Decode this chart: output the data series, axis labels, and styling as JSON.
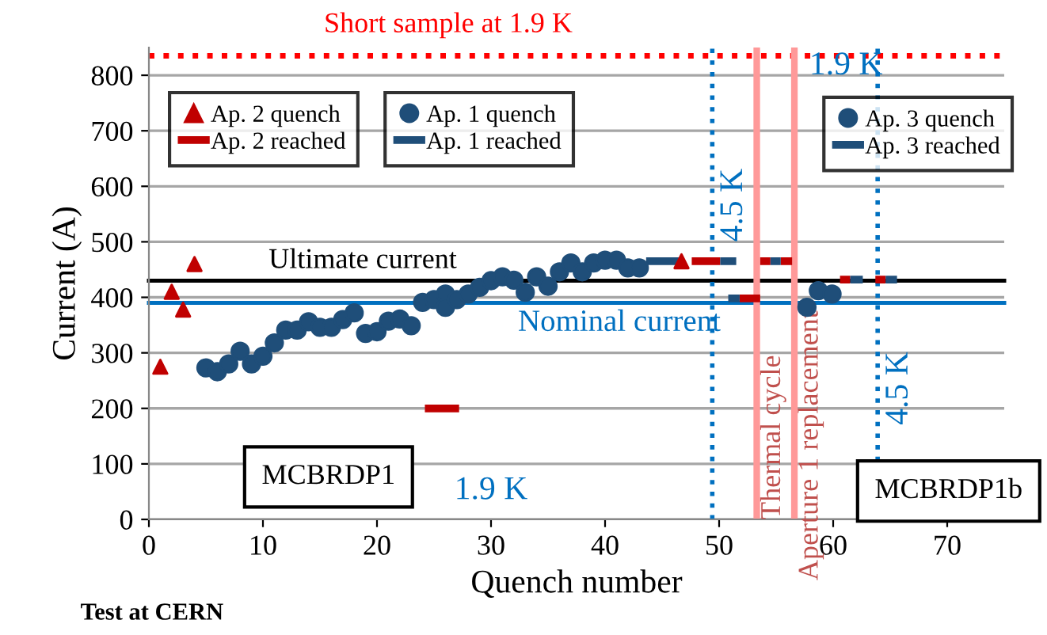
{
  "chart_data": {
    "type": "scatter",
    "xlabel": "Quench number",
    "ylabel": "Current (A)",
    "xlim": [
      0,
      75
    ],
    "xticks": [
      0,
      10,
      20,
      30,
      40,
      50,
      60,
      70
    ],
    "ylim": [
      0,
      850
    ],
    "yticks": [
      0,
      100,
      200,
      300,
      400,
      500,
      600,
      700,
      800
    ],
    "grid": "y",
    "legend": "top",
    "series": [
      {
        "name": "Ap. 2 quench",
        "marker": "triangle",
        "color": "#c00000",
        "x": [
          1,
          2,
          3,
          4,
          46.7
        ],
        "values": [
          275,
          410,
          378,
          460,
          465
        ]
      },
      {
        "name": "Ap. 2 reached",
        "type": "line",
        "marker": "none",
        "line_style": "solid",
        "color": "#c00000",
        "x": [
          24.2,
          27.2,
          null,
          47.6,
          50.1,
          null,
          51.8,
          53.6,
          null,
          53.6,
          54.5,
          null,
          55.4,
          56.4,
          null,
          60.6,
          61.5,
          null,
          63.7,
          64.6
        ],
        "values": [
          200,
          200,
          null,
          465,
          465,
          null,
          398,
          398,
          null,
          465,
          465,
          null,
          465,
          465,
          null,
          432,
          432,
          null,
          432,
          432
        ]
      },
      {
        "name": "Ap. 1 quench",
        "marker": "circle",
        "color": "#1f4e79",
        "x": [
          5,
          6,
          7,
          8,
          9,
          10,
          11,
          12,
          13,
          14,
          15,
          16,
          17,
          18,
          19,
          20,
          21,
          22,
          23,
          24,
          25,
          26,
          26,
          27,
          28,
          29,
          30,
          31,
          32,
          33,
          34,
          35,
          36,
          37,
          38,
          39,
          40,
          41,
          42,
          43
        ],
        "values": [
          273,
          266,
          280,
          303,
          280,
          294,
          318,
          341,
          341,
          356,
          346,
          346,
          360,
          372,
          335,
          338,
          357,
          361,
          349,
          391,
          396,
          406,
          382,
          396,
          406,
          418,
          430,
          437,
          431,
          409,
          437,
          420,
          446,
          462,
          446,
          462,
          467,
          467,
          453,
          453
        ]
      },
      {
        "name": "Ap. 1 reached",
        "type": "line",
        "marker": "none",
        "line_style": "solid",
        "color": "#1f4e79",
        "x": [
          43.6,
          46.7,
          null,
          50.1,
          51.5,
          null,
          50.8,
          51.8,
          null,
          54.5,
          55.4
        ],
        "values": [
          465,
          465,
          null,
          465,
          465,
          null,
          398,
          398,
          null,
          465,
          465
        ]
      },
      {
        "name": "Ap. 3 quench",
        "marker": "circle",
        "color": "#1f4e79",
        "x": [
          57.7,
          58.7,
          59.9
        ],
        "values": [
          382,
          412,
          406
        ]
      },
      {
        "name": "Ap. 3 reached",
        "type": "line",
        "marker": "none",
        "line_style": "solid",
        "color": "#1f4e79",
        "x": [
          61.5,
          62.6,
          null,
          64.6,
          65.6
        ],
        "values": [
          432,
          432,
          null,
          432,
          432
        ]
      }
    ],
    "ref_lines": [
      {
        "axis": "y",
        "value": 835,
        "label": "Short sample at 1.9 K",
        "color": "#ff0000",
        "line_style": "dotted"
      },
      {
        "axis": "y",
        "value": 430,
        "label": "Ultimate current",
        "color": "#000000",
        "line_style": "solid"
      },
      {
        "axis": "y",
        "value": 390,
        "label": "Nominal current",
        "color": "#0070c0",
        "line_style": "solid"
      },
      {
        "axis": "x",
        "value": 49.4,
        "label": "4.5 K",
        "color": "#0070c0",
        "line_style": "dotted"
      },
      {
        "axis": "x",
        "value": 53.3,
        "label": "Thermal cycle",
        "color": "#ff9999",
        "line_style": "solid"
      },
      {
        "axis": "x",
        "value": 56.6,
        "label": "Aperture 1 replacement",
        "color": "#ff9999",
        "line_style": "solid"
      },
      {
        "axis": "x",
        "value": 63.9,
        "label": "4.5 K",
        "color": "#0070c0",
        "line_style": "dotted"
      }
    ],
    "annotations": [
      "MCBRDP1",
      "1.9 K",
      "MCBRDP1b",
      "1.9 K",
      "Test at CERN"
    ]
  }
}
